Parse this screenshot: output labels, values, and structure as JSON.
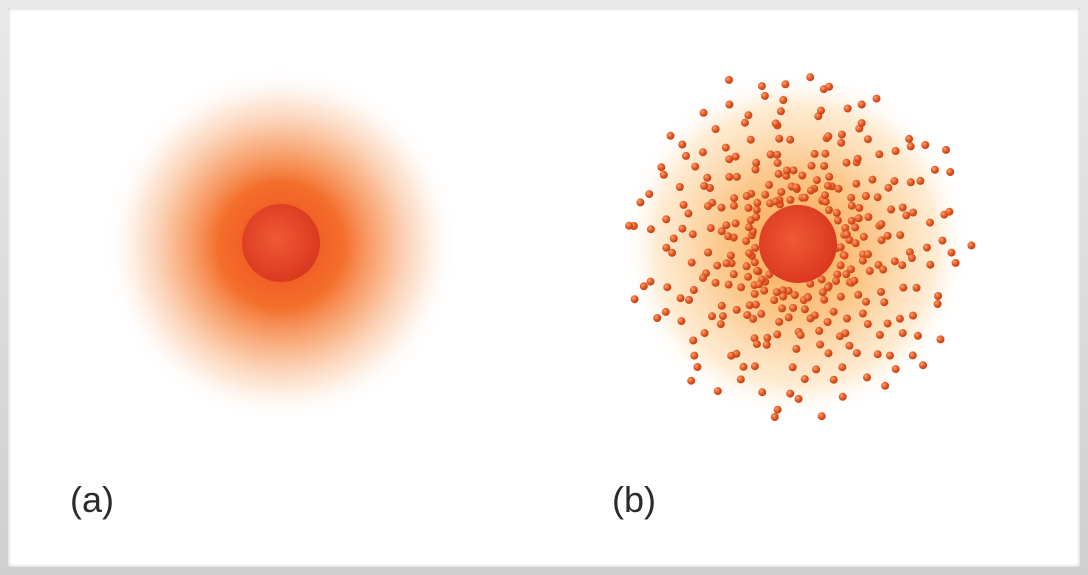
{
  "panels": [
    {
      "label": "(a)"
    },
    {
      "label": "(b)"
    }
  ],
  "colors": {
    "nucleus_center": "#ef4d2a",
    "nucleus_edge": "#d8361e",
    "cloud_a_inner": "#f3661f",
    "cloud_b_inner": "#fbbf6d",
    "dot": "#e0511f",
    "dot_highlight": "#f7a36b",
    "frame": "#d4d4d4",
    "label": "#2b2b2b"
  }
}
